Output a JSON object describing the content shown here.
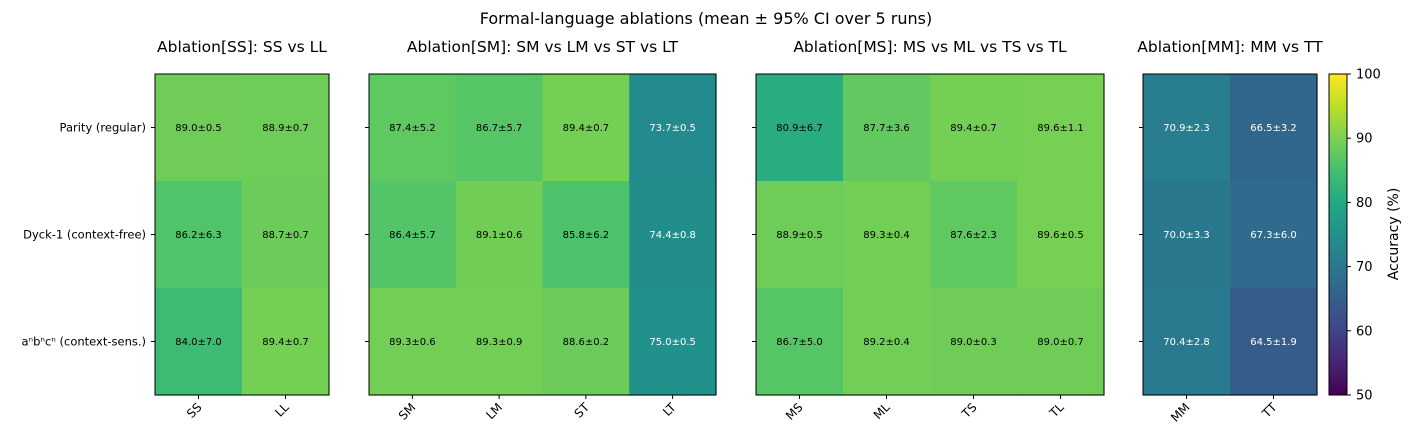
{
  "chart_data": {
    "type": "heatmap",
    "suptitle": "Formal-language ablations (mean ± 95% CI over 5 runs)",
    "row_labels": [
      "Parity (regular)",
      "Dyck-1 (context-free)",
      "aⁿbⁿcⁿ (context-sens.)"
    ],
    "colorbar": {
      "label": "Accuracy (%)",
      "vmin": 50,
      "vmax": 100,
      "ticks": [
        50,
        60,
        70,
        80,
        90,
        100
      ],
      "colormap": "viridis"
    },
    "panels": [
      {
        "title": "Ablation[SS]: SS vs LL",
        "columns": [
          "SS",
          "LL"
        ],
        "values": [
          [
            89.0,
            88.9
          ],
          [
            86.2,
            88.7
          ],
          [
            84.0,
            89.4
          ]
        ],
        "ci": [
          [
            0.5,
            0.7
          ],
          [
            6.3,
            0.7
          ],
          [
            7.0,
            0.7
          ]
        ],
        "annotations": [
          [
            "89.0±0.5",
            "88.9±0.7"
          ],
          [
            "86.2±6.3",
            "88.7±0.7"
          ],
          [
            "84.0±7.0",
            "89.4±0.7"
          ]
        ]
      },
      {
        "title": "Ablation[SM]: SM vs LM vs ST vs LT",
        "columns": [
          "SM",
          "LM",
          "ST",
          "LT"
        ],
        "values": [
          [
            87.4,
            86.7,
            89.4,
            73.7
          ],
          [
            86.4,
            89.1,
            85.8,
            74.4
          ],
          [
            89.3,
            89.3,
            88.6,
            75.0
          ]
        ],
        "ci": [
          [
            5.2,
            5.7,
            0.7,
            0.5
          ],
          [
            5.7,
            0.6,
            6.2,
            0.8
          ],
          [
            0.6,
            0.9,
            0.2,
            0.5
          ]
        ],
        "annotations": [
          [
            "87.4±5.2",
            "86.7±5.7",
            "89.4±0.7",
            "73.7±0.5"
          ],
          [
            "86.4±5.7",
            "89.1±0.6",
            "85.8±6.2",
            "74.4±0.8"
          ],
          [
            "89.3±0.6",
            "89.3±0.9",
            "88.6±0.2",
            "75.0±0.5"
          ]
        ]
      },
      {
        "title": "Ablation[MS]: MS vs ML vs TS vs TL",
        "columns": [
          "MS",
          "ML",
          "TS",
          "TL"
        ],
        "values": [
          [
            80.9,
            87.7,
            89.4,
            89.6
          ],
          [
            88.9,
            89.3,
            87.6,
            89.6
          ],
          [
            86.7,
            89.2,
            89.0,
            89.0
          ]
        ],
        "ci": [
          [
            6.7,
            3.6,
            0.7,
            1.1
          ],
          [
            0.5,
            0.4,
            2.3,
            0.5
          ],
          [
            5.0,
            0.4,
            0.3,
            0.7
          ]
        ],
        "annotations": [
          [
            "80.9±6.7",
            "87.7±3.6",
            "89.4±0.7",
            "89.6±1.1"
          ],
          [
            "88.9±0.5",
            "89.3±0.4",
            "87.6±2.3",
            "89.6±0.5"
          ],
          [
            "86.7±5.0",
            "89.2±0.4",
            "89.0±0.3",
            "89.0±0.7"
          ]
        ]
      },
      {
        "title": "Ablation[MM]: MM vs TT",
        "columns": [
          "MM",
          "TT"
        ],
        "values": [
          [
            70.9,
            66.5
          ],
          [
            70.0,
            67.3
          ],
          [
            70.4,
            64.5
          ]
        ],
        "ci": [
          [
            2.3,
            3.2
          ],
          [
            3.3,
            6.0
          ],
          [
            2.8,
            1.9
          ]
        ],
        "annotations": [
          [
            "70.9±2.3",
            "66.5±3.2"
          ],
          [
            "70.0±3.3",
            "67.3±6.0"
          ],
          [
            "70.4±2.8",
            "64.5±1.9"
          ]
        ]
      }
    ]
  }
}
